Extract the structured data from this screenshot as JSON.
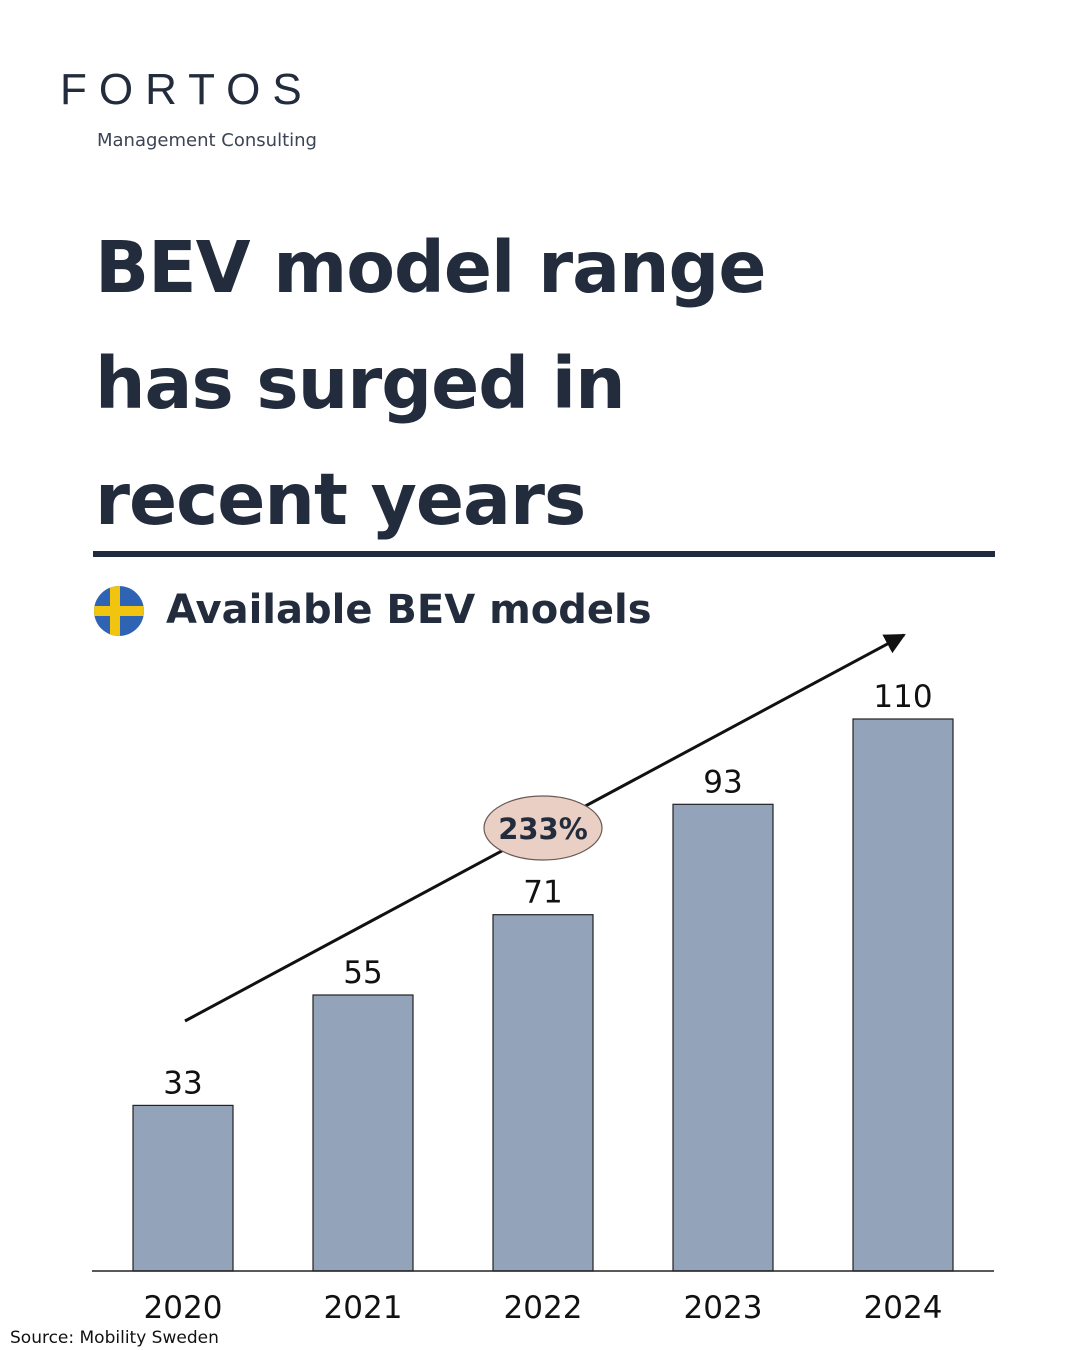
{
  "brand": {
    "name": "FORTOS",
    "tagline": "Management Consulting"
  },
  "headline": {
    "line1": "BEV model range",
    "line2": "has surged in",
    "line3": "recent years"
  },
  "flag_icon": "sweden-flag-icon",
  "source": "Source: Mobility Sweden",
  "colors": {
    "text": "#222c3c",
    "bar": "#93a3ba",
    "badge": "#eacfc4"
  },
  "chart_data": {
    "type": "bar",
    "title": "Available BEV models",
    "categories": [
      "2020",
      "2021",
      "2022",
      "2023",
      "2024"
    ],
    "values": [
      33,
      55,
      71,
      93,
      110
    ],
    "data_labels": [
      "33",
      "55",
      "71",
      "93",
      "110"
    ],
    "annotation": "233%",
    "ylim": [
      0,
      115
    ],
    "grid": false,
    "trend_arrow": true
  }
}
